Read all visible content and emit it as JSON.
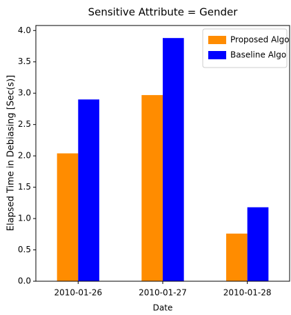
{
  "chart_data": {
    "type": "bar",
    "title": "Sensitive Attribute = Gender",
    "x_label": "Date",
    "y_label": "Elapsed Time in Debiasing [Sec(s)]",
    "categories": [
      "2010-01-26",
      "2010-01-27",
      "2010-01-28"
    ],
    "series": [
      {
        "name": "Proposed Algo",
        "color": "#ff8c00",
        "values": [
          2.04,
          2.97,
          0.76
        ]
      },
      {
        "name": "Baseline Algo",
        "color": "#0000ff",
        "values": [
          2.9,
          3.88,
          1.18
        ]
      }
    ],
    "ylim": [
      0,
      4.08
    ],
    "yticks": [
      {
        "value": 0,
        "label": "0.0"
      },
      0.5,
      {
        "value": 1,
        "label": "1.0"
      },
      1.5,
      {
        "value": 2,
        "label": "2.0"
      },
      2.5,
      {
        "value": 3,
        "label": "3.0"
      },
      3.5,
      {
        "value": 4,
        "label": "4.0"
      }
    ],
    "legend": "upper right",
    "grid": false
  }
}
